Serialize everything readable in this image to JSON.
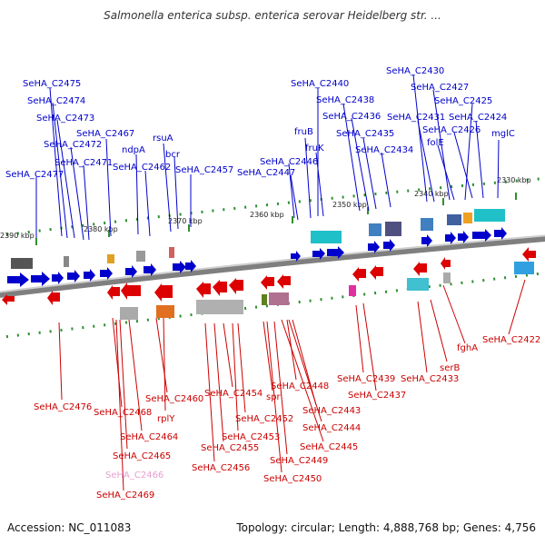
{
  "header": {
    "title": "Salmonella enterica subsp. enterica serovar Heidelberg str. ...",
    "accession": "Accession: NC_011083",
    "stats": "Topology: circular; Length: 4,888,768 bp; Genes: 4,756"
  },
  "colors": {
    "forward": "#0000cc",
    "reverse": "#cc0000",
    "backbone": "#7f7f7f",
    "tick": "#2f8f2f",
    "pseudo": "#e6a0d0"
  },
  "kbp_ticks": [
    "2390 kbp",
    "2380 kbp",
    "2370 kbp",
    "2360 kbp",
    "2350 kbp",
    "2340 kbp",
    "2330 kbp"
  ],
  "forward_genes": [
    "SeHA_C2475",
    "SeHA_C2474",
    "SeHA_C2473",
    "SeHA_C2472",
    "SeHA_C2471",
    "SeHA_C2477",
    "SeHA_C2467",
    "ndpA",
    "SeHA_C2462",
    "rsuA",
    "bcr",
    "SeHA_C2457",
    "SeHA_C2446",
    "SeHA_C2447",
    "SeHA_C2440",
    "fruB",
    "fruK",
    "SeHA_C2438",
    "SeHA_C2436",
    "SeHA_C2435",
    "SeHA_C2434",
    "SeHA_C2430",
    "SeHA_C2427",
    "SeHA_C2425",
    "SeHA_C2431",
    "SeHA_C2424",
    "SeHA_C2426",
    "folE",
    "mglC"
  ],
  "reverse_genes": [
    "SeHA_C2476",
    "SeHA_C2468",
    "SeHA_C2460",
    "rplY",
    "SeHA_C2464",
    "SeHA_C2465",
    "SeHA_C2466",
    "SeHA_C2469",
    "SeHA_C2454",
    "spr",
    "SeHA_C2448",
    "SeHA_C2452",
    "SeHA_C2453",
    "SeHA_C2455",
    "SeHA_C2456",
    "SeHA_C2449",
    "SeHA_C2450",
    "SeHA_C2443",
    "SeHA_C2444",
    "SeHA_C2445",
    "SeHA_C2439",
    "SeHA_C2437",
    "SeHA_C2433",
    "serB",
    "fghA",
    "SeHA_C2422"
  ]
}
